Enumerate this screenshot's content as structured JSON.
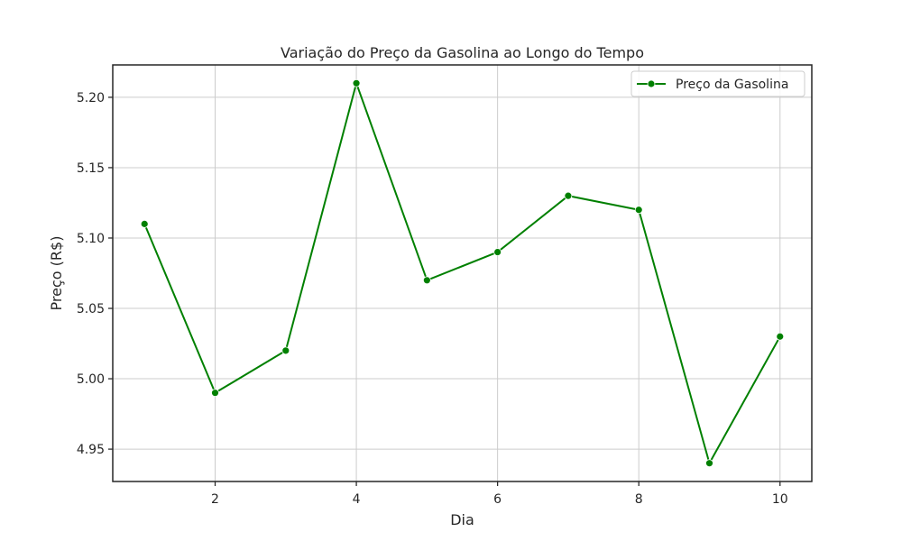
{
  "chart_data": {
    "type": "line",
    "title": "Variação do Preço da Gasolina ao Longo do Tempo",
    "xlabel": "Dia",
    "ylabel": "Preço (R$)",
    "x": [
      1,
      2,
      3,
      4,
      5,
      6,
      7,
      8,
      9,
      10
    ],
    "series": [
      {
        "name": "Preço da Gasolina",
        "values": [
          5.11,
          4.99,
          5.02,
          5.21,
          5.07,
          5.09,
          5.13,
          5.12,
          4.94,
          5.03
        ],
        "color": "#008000",
        "marker": "circle"
      }
    ],
    "xlim": [
      0.55,
      10.45
    ],
    "ylim": [
      4.927,
      5.223
    ],
    "xticks": [
      2,
      4,
      6,
      8,
      10
    ],
    "xtick_labels": [
      "2",
      "4",
      "6",
      "8",
      "10"
    ],
    "yticks": [
      4.95,
      5.0,
      5.05,
      5.1,
      5.15,
      5.2
    ],
    "ytick_labels": [
      "4.95",
      "5.00",
      "5.05",
      "5.10",
      "5.15",
      "5.20"
    ],
    "grid": true,
    "legend_position": "top-right"
  }
}
